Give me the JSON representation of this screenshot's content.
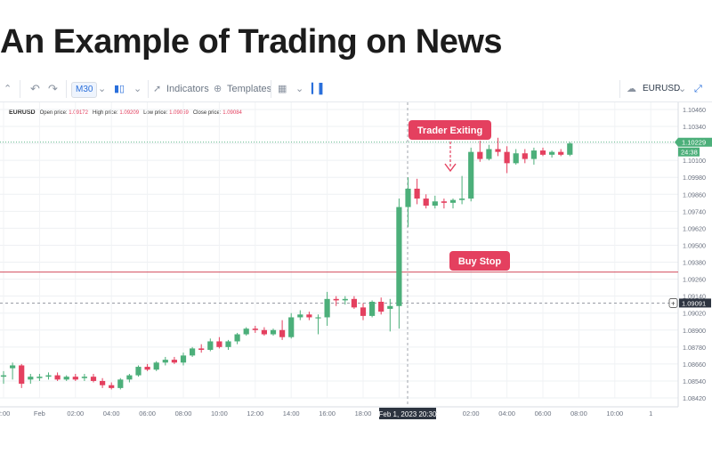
{
  "page": {
    "title": "An Example of Trading on News"
  },
  "toolbar": {
    "timeframe": "M30",
    "indicators_label": "Indicators",
    "templates_label": "Templates",
    "symbol": "EURUSD"
  },
  "legend": {
    "symbol": "EURUSD",
    "open_label": "Open price:",
    "open_value": "1.09172",
    "high_label": "High price:",
    "high_value": "1.09209",
    "low_label": "Low price:",
    "low_value": "1.09059",
    "close_label": "Close price:",
    "close_value": "1.09084"
  },
  "colors": {
    "up": "#4caf7a",
    "down": "#e4405f",
    "buy_stop_line": "#d34d5e",
    "price_line": "#4caf7a",
    "annotation_bg": "#e4405f"
  },
  "chart_data": {
    "type": "candlestick",
    "title": "",
    "y_ticks": [
      "1.10460",
      "1.10340",
      "1.10220",
      "1.10100",
      "1.09980",
      "1.09860",
      "1.09740",
      "1.09620",
      "1.09500",
      "1.09380",
      "1.09260",
      "1.09140",
      "1.09020",
      "1.08900",
      "1.08780",
      "1.08660",
      "1.08540",
      "1.08420"
    ],
    "ylim": [
      1.0842,
      1.1046
    ],
    "x_ticks": [
      "2:00",
      "Feb",
      "02:00",
      "04:00",
      "06:00",
      "08:00",
      "10:00",
      "12:00",
      "14:00",
      "16:00",
      "18:00",
      "",
      "2",
      "02:00",
      "04:00",
      "06:00",
      "08:00",
      "10:00",
      "1"
    ],
    "crosshair_time": "Feb 1, 2023 20:30",
    "current_price": "1.10229",
    "countdown": "24:38",
    "cursor_price": "1.09091",
    "annotations": [
      {
        "text": "Trader Exiting"
      },
      {
        "text": "Buy Stop",
        "price": 1.0931
      }
    ],
    "candles": [
      {
        "o": 1.0857,
        "h": 1.0861,
        "l": 1.0852,
        "c": 1.0858
      },
      {
        "o": 1.0863,
        "h": 1.0867,
        "l": 1.0855,
        "c": 1.0865
      },
      {
        "o": 1.0865,
        "h": 1.0866,
        "l": 1.0849,
        "c": 1.0852
      },
      {
        "o": 1.0855,
        "h": 1.0859,
        "l": 1.0852,
        "c": 1.0857
      },
      {
        "o": 1.0856,
        "h": 1.0859,
        "l": 1.0854,
        "c": 1.0857
      },
      {
        "o": 1.0857,
        "h": 1.086,
        "l": 1.0855,
        "c": 1.0858
      },
      {
        "o": 1.0858,
        "h": 1.086,
        "l": 1.0854,
        "c": 1.0855
      },
      {
        "o": 1.0855,
        "h": 1.0858,
        "l": 1.0854,
        "c": 1.0857
      },
      {
        "o": 1.0857,
        "h": 1.0859,
        "l": 1.0854,
        "c": 1.0855
      },
      {
        "o": 1.0856,
        "h": 1.0859,
        "l": 1.0854,
        "c": 1.0857
      },
      {
        "o": 1.0857,
        "h": 1.0859,
        "l": 1.0853,
        "c": 1.0854
      },
      {
        "o": 1.0854,
        "h": 1.0856,
        "l": 1.0849,
        "c": 1.0851
      },
      {
        "o": 1.0851,
        "h": 1.0853,
        "l": 1.0848,
        "c": 1.0849
      },
      {
        "o": 1.0849,
        "h": 1.0856,
        "l": 1.0848,
        "c": 1.0855
      },
      {
        "o": 1.0855,
        "h": 1.0859,
        "l": 1.0853,
        "c": 1.0858
      },
      {
        "o": 1.0858,
        "h": 1.0865,
        "l": 1.0857,
        "c": 1.0864
      },
      {
        "o": 1.0864,
        "h": 1.0866,
        "l": 1.0861,
        "c": 1.0862
      },
      {
        "o": 1.0862,
        "h": 1.0868,
        "l": 1.0861,
        "c": 1.0867
      },
      {
        "o": 1.0867,
        "h": 1.0871,
        "l": 1.0865,
        "c": 1.0869
      },
      {
        "o": 1.0869,
        "h": 1.0871,
        "l": 1.0866,
        "c": 1.0867
      },
      {
        "o": 1.0867,
        "h": 1.0874,
        "l": 1.0865,
        "c": 1.0872
      },
      {
        "o": 1.0872,
        "h": 1.0878,
        "l": 1.0871,
        "c": 1.0877
      },
      {
        "o": 1.0877,
        "h": 1.088,
        "l": 1.0874,
        "c": 1.0876
      },
      {
        "o": 1.0876,
        "h": 1.0884,
        "l": 1.0875,
        "c": 1.0882
      },
      {
        "o": 1.0882,
        "h": 1.0885,
        "l": 1.0877,
        "c": 1.0878
      },
      {
        "o": 1.0878,
        "h": 1.0883,
        "l": 1.0876,
        "c": 1.0882
      },
      {
        "o": 1.0882,
        "h": 1.0888,
        "l": 1.088,
        "c": 1.0887
      },
      {
        "o": 1.0887,
        "h": 1.0892,
        "l": 1.0886,
        "c": 1.0891
      },
      {
        "o": 1.0891,
        "h": 1.0893,
        "l": 1.0888,
        "c": 1.089
      },
      {
        "o": 1.089,
        "h": 1.0892,
        "l": 1.0886,
        "c": 1.0887
      },
      {
        "o": 1.0887,
        "h": 1.0891,
        "l": 1.0886,
        "c": 1.089
      },
      {
        "o": 1.089,
        "h": 1.0897,
        "l": 1.0883,
        "c": 1.0885
      },
      {
        "o": 1.0885,
        "h": 1.0902,
        "l": 1.0884,
        "c": 1.0899
      },
      {
        "o": 1.0899,
        "h": 1.0904,
        "l": 1.0897,
        "c": 1.0901
      },
      {
        "o": 1.0901,
        "h": 1.0903,
        "l": 1.0897,
        "c": 1.0899
      },
      {
        "o": 1.0899,
        "h": 1.0901,
        "l": 1.0887,
        "c": 1.0899
      },
      {
        "o": 1.0899,
        "h": 1.0917,
        "l": 1.0893,
        "c": 1.0912
      },
      {
        "o": 1.0912,
        "h": 1.0914,
        "l": 1.0907,
        "c": 1.0911
      },
      {
        "o": 1.0911,
        "h": 1.0914,
        "l": 1.0908,
        "c": 1.0912
      },
      {
        "o": 1.0912,
        "h": 1.0914,
        "l": 1.0905,
        "c": 1.0906
      },
      {
        "o": 1.0906,
        "h": 1.0909,
        "l": 1.0897,
        "c": 1.09
      },
      {
        "o": 1.09,
        "h": 1.0911,
        "l": 1.0899,
        "c": 1.091
      },
      {
        "o": 1.091,
        "h": 1.0913,
        "l": 1.0901,
        "c": 1.0903
      },
      {
        "o": 1.0905,
        "h": 1.0912,
        "l": 1.0889,
        "c": 1.0907
      },
      {
        "o": 1.0907,
        "h": 1.0983,
        "l": 1.0891,
        "c": 1.0977
      },
      {
        "o": 1.0977,
        "h": 1.0998,
        "l": 1.0963,
        "c": 1.099
      },
      {
        "o": 1.099,
        "h": 1.0997,
        "l": 1.0979,
        "c": 1.0983
      },
      {
        "o": 1.0983,
        "h": 1.0986,
        "l": 1.0976,
        "c": 1.0978
      },
      {
        "o": 1.0978,
        "h": 1.0985,
        "l": 1.0976,
        "c": 1.0981
      },
      {
        "o": 1.0981,
        "h": 1.0983,
        "l": 1.0976,
        "c": 1.098
      },
      {
        "o": 1.098,
        "h": 1.0983,
        "l": 1.0976,
        "c": 1.0982
      },
      {
        "o": 1.0982,
        "h": 1.0999,
        "l": 1.0979,
        "c": 1.0983
      },
      {
        "o": 1.0983,
        "h": 1.1019,
        "l": 1.0981,
        "c": 1.1016
      },
      {
        "o": 1.1016,
        "h": 1.1024,
        "l": 1.1009,
        "c": 1.1011
      },
      {
        "o": 1.1011,
        "h": 1.1021,
        "l": 1.101,
        "c": 1.1018
      },
      {
        "o": 1.1018,
        "h": 1.1026,
        "l": 1.1013,
        "c": 1.1016
      },
      {
        "o": 1.1016,
        "h": 1.102,
        "l": 1.1001,
        "c": 1.1008
      },
      {
        "o": 1.1008,
        "h": 1.1018,
        "l": 1.1007,
        "c": 1.1015
      },
      {
        "o": 1.1015,
        "h": 1.1018,
        "l": 1.1008,
        "c": 1.1011
      },
      {
        "o": 1.1011,
        "h": 1.1019,
        "l": 1.1007,
        "c": 1.1017
      },
      {
        "o": 1.1017,
        "h": 1.1019,
        "l": 1.1013,
        "c": 1.1014
      },
      {
        "o": 1.1014,
        "h": 1.1017,
        "l": 1.1012,
        "c": 1.1016
      },
      {
        "o": 1.1016,
        "h": 1.1018,
        "l": 1.1013,
        "c": 1.1014
      },
      {
        "o": 1.1014,
        "h": 1.1023,
        "l": 1.1013,
        "c": 1.1022
      }
    ]
  }
}
